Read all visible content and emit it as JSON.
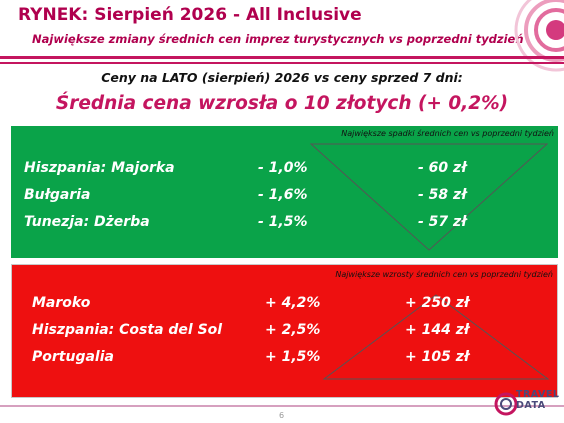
{
  "header": {
    "title": "RYNEK: Sierpień 2026 - All Inclusive",
    "subtitle": "Największe zmiany średnich cen imprez turystycznych vs poprzedni tydzień"
  },
  "summary": {
    "comparison": "Ceny na LATO (sierpień) 2026 vs ceny sprzed 7 dni:",
    "headline": "Średnia cena wzrosła o 10 złotych (+ 0,2%)"
  },
  "decreases": {
    "caption": "Największe spadki średnich cen vs poprzedni tydzień",
    "rows": [
      {
        "destination": "Hiszpania: Majorka",
        "percent": "-  1,0%",
        "amount": "- 60 zł"
      },
      {
        "destination": "Bułgaria",
        "percent": "-  1,6%",
        "amount": "- 58 zł"
      },
      {
        "destination": "Tunezja: Dżerba",
        "percent": "-  1,5%",
        "amount": "- 57 zł"
      }
    ]
  },
  "increases": {
    "caption": "Największe wzrosty średnich cen vs poprzedni tydzień",
    "rows": [
      {
        "destination": "Maroko",
        "percent": "+ 4,2%",
        "amount": "+ 250 zł"
      },
      {
        "destination": "Hiszpania: Costa del Sol",
        "percent": "+ 2,5%",
        "amount": "+ 144 zł"
      },
      {
        "destination": "Portugalia",
        "percent": "+ 1,5%",
        "amount": "+ 105 zł"
      }
    ]
  },
  "footer": {
    "page_number": "6",
    "logo_top": "TRAVEL",
    "logo_bottom": "DATA"
  },
  "colors": {
    "brand": "#c4155f",
    "decrease_panel": "#0aa349",
    "increase_panel": "#ee1010"
  }
}
